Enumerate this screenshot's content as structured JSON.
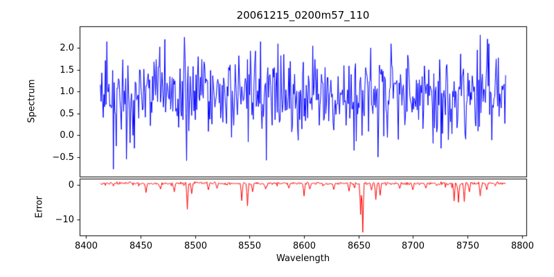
{
  "figure": {
    "title": "20061215_0200m57_110",
    "xlabel": "Wavelength",
    "background_color": "#ffffff",
    "axes_edge_color": "#000000",
    "xticks": [
      "8400",
      "8450",
      "8500",
      "8550",
      "8600",
      "8650",
      "8700",
      "8750",
      "8800"
    ]
  },
  "chart_data": [
    {
      "type": "line",
      "id": "spectrum",
      "ylabel": "Spectrum",
      "line_color": "#0000ff",
      "x_start": 8413,
      "x_end": 8785,
      "n_points": 560,
      "xlim": [
        8394,
        8804
      ],
      "ylim": [
        -0.95,
        2.5
      ],
      "yticks": [
        "2.0",
        "1.5",
        "1.0",
        "0.5",
        "0.0",
        "-0.5"
      ],
      "noise_mean": 0.92,
      "noise_std": 0.44,
      "seed": 20061215,
      "notable_points": [
        [
          8419,
          2.15
        ],
        [
          8425,
          -0.78
        ],
        [
          8437,
          -0.55
        ],
        [
          8444,
          -0.3
        ],
        [
          8472,
          2.2
        ],
        [
          8490,
          2.25
        ],
        [
          8560,
          2.15
        ],
        [
          8576,
          2.1
        ],
        [
          8608,
          2.05
        ],
        [
          8646,
          -0.35
        ],
        [
          8668,
          -0.5
        ],
        [
          8680,
          2.1
        ],
        [
          8726,
          -0.3
        ],
        [
          8762,
          2.3
        ],
        [
          8770,
          2.1
        ]
      ]
    },
    {
      "type": "line",
      "id": "error",
      "ylabel": "Error",
      "line_color": "#ff0000",
      "x_start": 8413,
      "x_end": 8785,
      "n_points": 560,
      "xlim": [
        8394,
        8804
      ],
      "ylim": [
        -14.5,
        1.8
      ],
      "yticks": [
        "0",
        "-10"
      ],
      "baseline": 0.45,
      "jitter": 0.18,
      "seed": 57,
      "spikes": [
        [
          8455,
          -2.2
        ],
        [
          8468,
          -1.2
        ],
        [
          8481,
          -2.0
        ],
        [
          8493,
          -7.0
        ],
        [
          8497,
          -2.5
        ],
        [
          8512,
          -1.4
        ],
        [
          8520,
          -1.0
        ],
        [
          8543,
          -4.5
        ],
        [
          8548,
          -6.0
        ],
        [
          8553,
          -2.0
        ],
        [
          8565,
          -1.2
        ],
        [
          8586,
          -0.9
        ],
        [
          8600,
          -3.2
        ],
        [
          8605,
          -1.2
        ],
        [
          8627,
          -1.3
        ],
        [
          8641,
          -1.8
        ],
        [
          8652,
          -8.5
        ],
        [
          8654,
          -13.6
        ],
        [
          8662,
          -1.5
        ],
        [
          8666,
          -4.2
        ],
        [
          8670,
          -3.0
        ],
        [
          8688,
          -1.0
        ],
        [
          8700,
          -1.4
        ],
        [
          8712,
          -0.9
        ],
        [
          8738,
          -4.6
        ],
        [
          8742,
          -5.0
        ],
        [
          8747,
          -4.8
        ],
        [
          8752,
          -2.0
        ],
        [
          8762,
          -3.2
        ],
        [
          8768,
          -1.4
        ]
      ]
    }
  ]
}
